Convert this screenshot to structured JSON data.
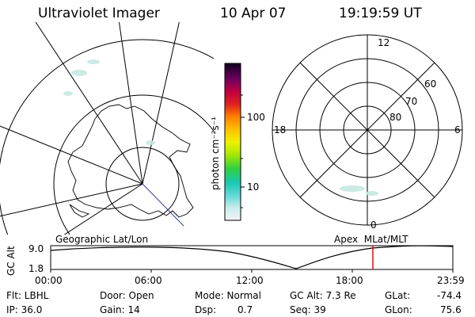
{
  "header": {
    "instrument": "Ultraviolet Imager",
    "date": "10 Apr 07",
    "time": "19:19:59 UT"
  },
  "colorbar": {
    "label": "photon cm⁻²s⁻¹",
    "ticks": [
      "100",
      "10"
    ],
    "scale": "log"
  },
  "left_map": {
    "caption": "Geographic Lat/Lon"
  },
  "right_map": {
    "caption": "Apex  MLat/MLT",
    "mlt_labels": {
      "top": "12",
      "left": "18",
      "right": "6",
      "bottom": "0"
    },
    "lat_labels": [
      "60",
      "70",
      "80"
    ]
  },
  "altitude_plot": {
    "ylabel": "GC Alt",
    "yticks": [
      "9.0",
      "1.8"
    ],
    "xticks": [
      "00:00",
      "06:00",
      "12:00",
      "18:00",
      "23:59"
    ],
    "current_time_fraction": 0.8056,
    "marker_color": "#e00000"
  },
  "info": {
    "filter": "Flt: LBHL",
    "ip": "IP: 36.0",
    "door": "Door: Open",
    "gain": "Gain: 14",
    "mode": "Mode: Normal",
    "dsp_label": "Dsp:",
    "dsp_value": "0.7",
    "gc_alt": "GC Alt: 7.3 Re",
    "seq": "Seq: 39",
    "glat_label": "GLat:",
    "glat_value": "-74.4",
    "glon_label": "GLon:",
    "glon_value": "75.6"
  }
}
